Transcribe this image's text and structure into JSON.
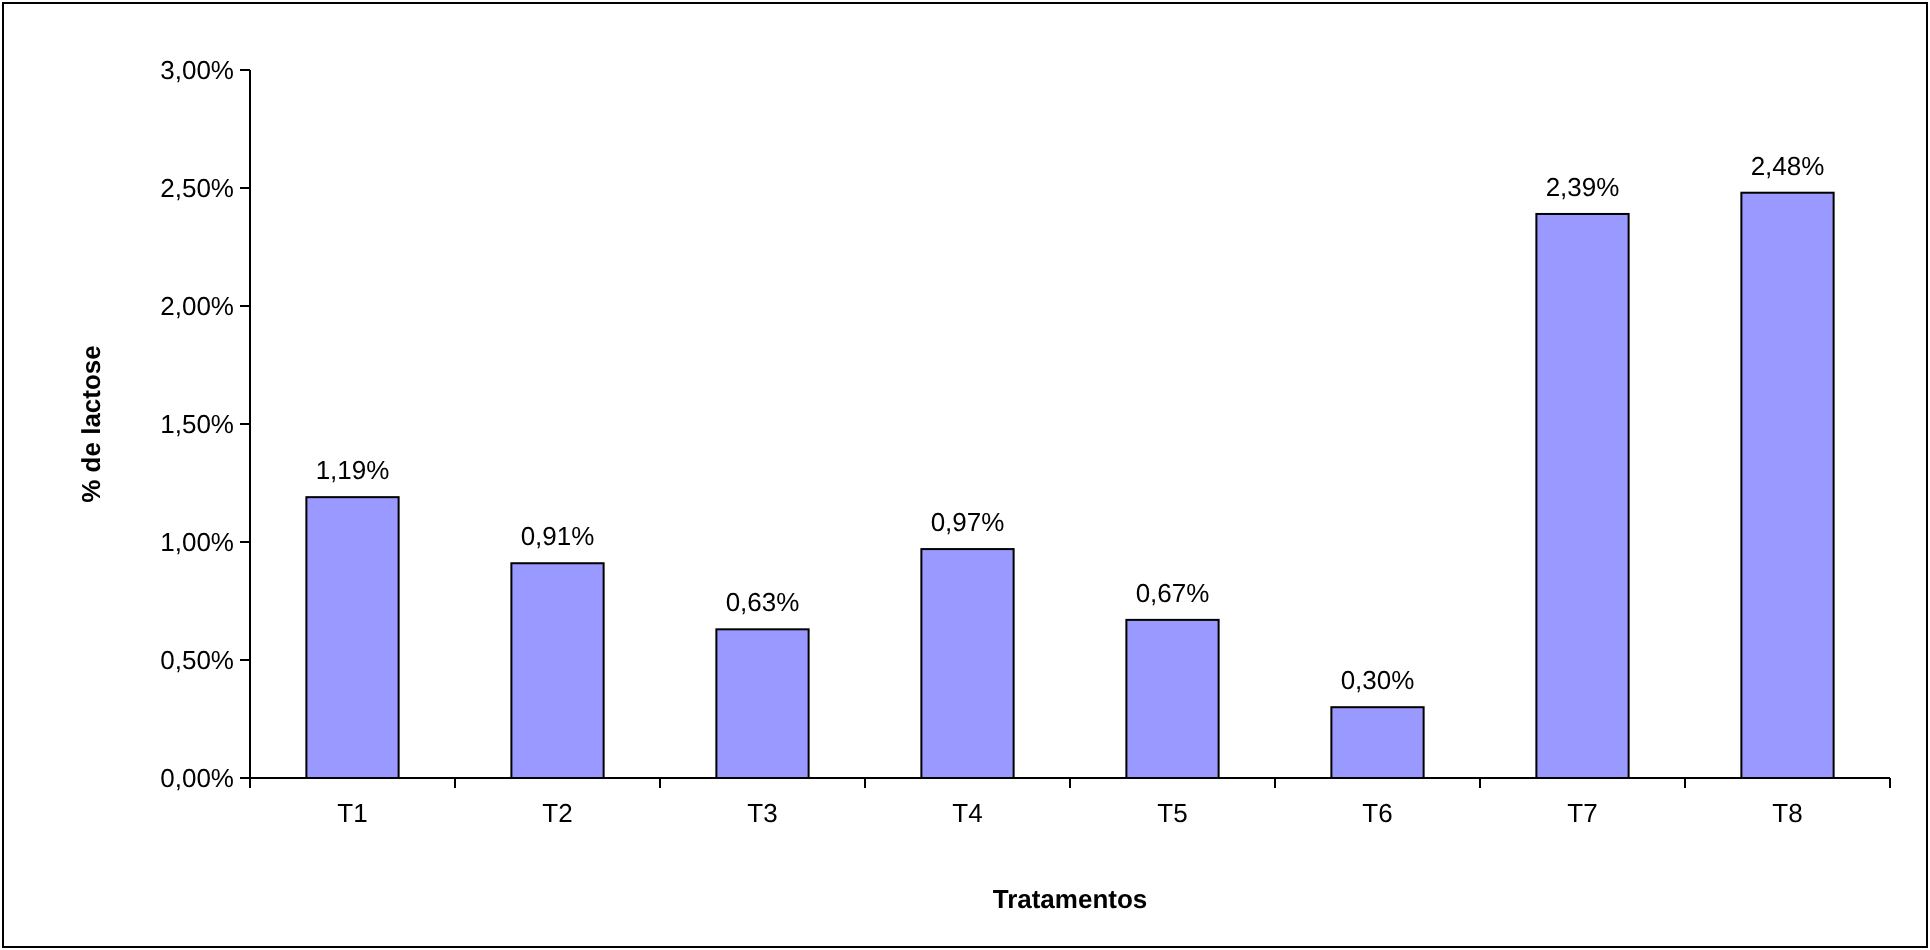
{
  "chart_data": {
    "type": "bar",
    "xlabel": "Tratamentos",
    "ylabel": "% de lactose",
    "categories": [
      "T1",
      "T2",
      "T3",
      "T4",
      "T5",
      "T6",
      "T7",
      "T8"
    ],
    "values": [
      1.19,
      0.91,
      0.63,
      0.97,
      0.67,
      0.3,
      2.39,
      2.48
    ],
    "value_labels": [
      "1,19%",
      "0,91%",
      "0,63%",
      "0,97%",
      "0,67%",
      "0,30%",
      "2,39%",
      "2,48%"
    ],
    "color": "#9999ff",
    "ylim": [
      0,
      3
    ],
    "yticks": [
      {
        "value": 0,
        "label": "0,00%"
      },
      {
        "value": 0.5,
        "label": "0,50%"
      },
      {
        "value": 1,
        "label": "1,00%"
      },
      {
        "value": 1.5,
        "label": "1,50%"
      },
      {
        "value": 2,
        "label": "2,00%"
      },
      {
        "value": 2.5,
        "label": "2,50%"
      },
      {
        "value": 3,
        "label": "3,00%"
      }
    ],
    "grid": false
  }
}
